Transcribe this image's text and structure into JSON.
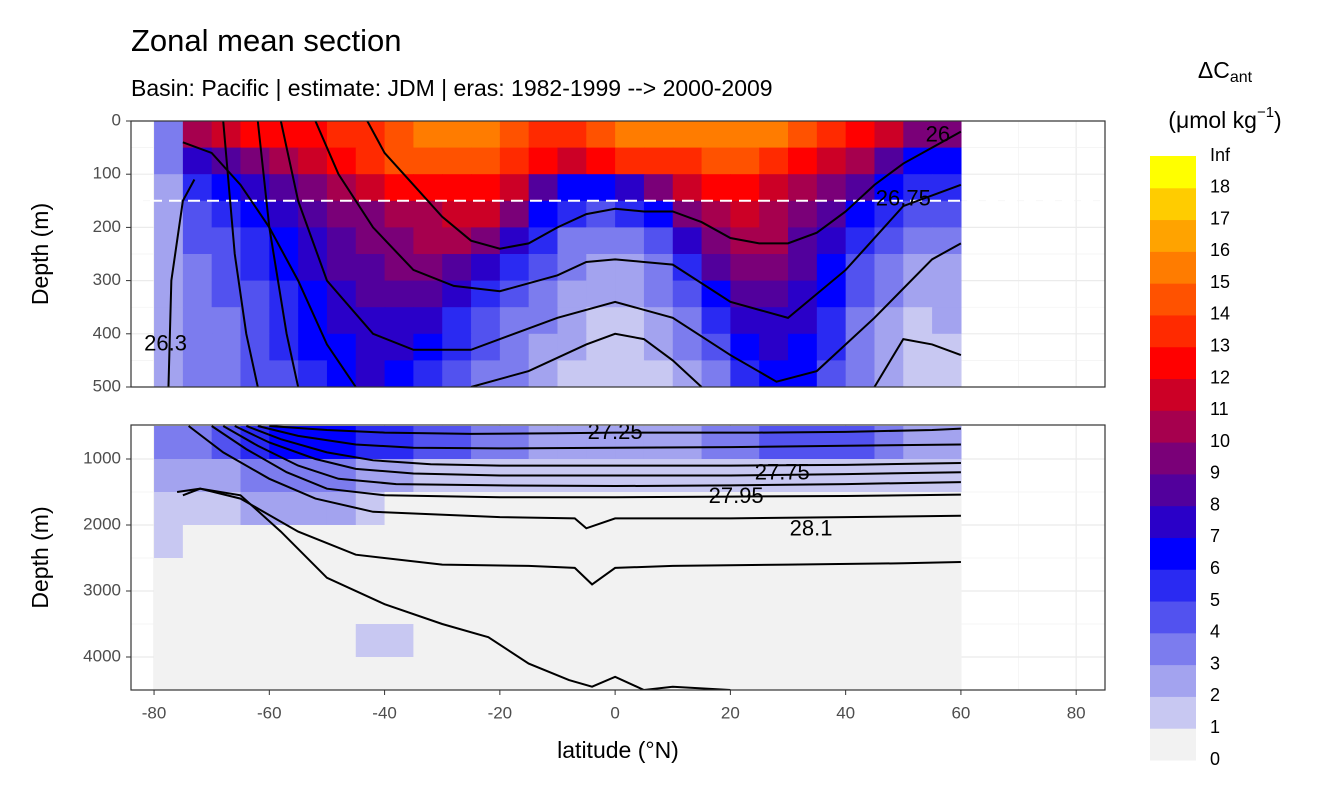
{
  "chart_data": {
    "type": "contour",
    "title": "Zonal mean section",
    "subtitle": "Basin: Pacific | estimate: JDM  | eras: 1982-1999 --> 2000-2009",
    "xlabel": "latitude (°N)",
    "xlim": [
      -84,
      85
    ],
    "xticks": [
      -80,
      -60,
      -40,
      -20,
      0,
      20,
      40,
      60,
      80
    ],
    "x": [
      -77.5,
      -72.5,
      -67.5,
      -62.5,
      -57.5,
      -52.5,
      -47.5,
      -42.5,
      -37.5,
      -32.5,
      -27.5,
      -22.5,
      -17.5,
      -12.5,
      -7.5,
      -2.5,
      2.5,
      7.5,
      12.5,
      17.5,
      22.5,
      27.5,
      32.5,
      37.5,
      42.5,
      47.5,
      52.5,
      57.5
    ],
    "legend": {
      "title": "ΔC",
      "title_sub": "ant",
      "unit": "(μmol kg",
      "unit_sup": "−1",
      "unit_end": ")",
      "levels": [
        0,
        1,
        2,
        3,
        4,
        5,
        6,
        7,
        8,
        9,
        10,
        11,
        12,
        13,
        14,
        15,
        16,
        17,
        18,
        "Inf"
      ],
      "colors": [
        "#f2f2f2",
        "#c8c8f2",
        "#a3a3ef",
        "#7c7cee",
        "#5252ef",
        "#2a2af2",
        "#0000ff",
        "#2a00c8",
        "#52009c",
        "#7a0078",
        "#a6004e",
        "#cc0026",
        "#ff0000",
        "#ff2a00",
        "#ff5200",
        "#ff7c00",
        "#ffa300",
        "#ffcc00",
        "#ffff00"
      ]
    },
    "panels": [
      {
        "ylabel": "Depth (m)",
        "ylim": [
          0,
          500
        ],
        "yticks": [
          0,
          100,
          200,
          300,
          400,
          500
        ],
        "reversed": true,
        "reference_depth": 150,
        "y": [
          25,
          75,
          125,
          175,
          225,
          275,
          325,
          375,
          425,
          475
        ],
        "z": [
          [
            3,
            10,
            11,
            12,
            12,
            12,
            13,
            13,
            14,
            15,
            15,
            15,
            14,
            13,
            13,
            14,
            15,
            15,
            15,
            15,
            15,
            15,
            14,
            13,
            12,
            11,
            9,
            9
          ],
          [
            3,
            7,
            8,
            9,
            10,
            11,
            12,
            13,
            14,
            14,
            14,
            14,
            13,
            12,
            11,
            12,
            13,
            13,
            13,
            14,
            14,
            13,
            12,
            11,
            10,
            8,
            6,
            6
          ],
          [
            2,
            5,
            6,
            7,
            8,
            9,
            10,
            11,
            12,
            12,
            12,
            12,
            11,
            8,
            6,
            6,
            7,
            9,
            11,
            12,
            12,
            11,
            10,
            9,
            8,
            6,
            5,
            5
          ],
          [
            2,
            4,
            5,
            6,
            7,
            8,
            9,
            9,
            10,
            10,
            11,
            11,
            9,
            6,
            5,
            4,
            5,
            6,
            9,
            10,
            11,
            10,
            9,
            8,
            6,
            5,
            4,
            4
          ],
          [
            2,
            4,
            4,
            5,
            6,
            7,
            8,
            9,
            9,
            10,
            10,
            9,
            7,
            5,
            3,
            3,
            3,
            4,
            7,
            9,
            10,
            10,
            8,
            7,
            5,
            4,
            3,
            3
          ],
          [
            2,
            3,
            4,
            5,
            6,
            7,
            8,
            8,
            9,
            9,
            8,
            7,
            5,
            4,
            3,
            2,
            2,
            3,
            5,
            8,
            9,
            9,
            8,
            6,
            4,
            3,
            2,
            2
          ],
          [
            2,
            3,
            4,
            4,
            5,
            6,
            7,
            8,
            8,
            8,
            7,
            5,
            4,
            3,
            2,
            2,
            2,
            3,
            4,
            6,
            8,
            8,
            7,
            6,
            4,
            3,
            2,
            2
          ],
          [
            2,
            3,
            3,
            4,
            5,
            6,
            7,
            7,
            7,
            7,
            5,
            4,
            3,
            3,
            2,
            1,
            1,
            2,
            3,
            5,
            7,
            7,
            7,
            5,
            3,
            2,
            1,
            2
          ],
          [
            2,
            3,
            3,
            4,
            5,
            6,
            6,
            7,
            7,
            6,
            5,
            4,
            3,
            2,
            2,
            1,
            1,
            2,
            3,
            4,
            6,
            7,
            6,
            5,
            3,
            2,
            1,
            1
          ],
          [
            2,
            3,
            3,
            4,
            4,
            5,
            6,
            7,
            6,
            5,
            4,
            3,
            3,
            2,
            1,
            1,
            1,
            1,
            2,
            3,
            5,
            6,
            6,
            4,
            3,
            2,
            1,
            1
          ]
        ],
        "contours": [
          {
            "x": [
              -77.5,
              -77,
              -75,
              -73
            ],
            "y": [
              500,
              300,
              150,
              110
            ],
            "label": "26.3",
            "label_at": [
              -78,
              420
            ]
          },
          {
            "x": [
              -75,
              -70,
              -65,
              -60,
              -55,
              -50,
              -45
            ],
            "y": [
              40,
              60,
              120,
              200,
              300,
              420,
              500
            ]
          },
          {
            "x": [
              -68,
              -66,
              -64,
              -62
            ],
            "y": [
              0,
              250,
              400,
              500
            ]
          },
          {
            "x": [
              -62,
              -60,
              -57,
              -55
            ],
            "y": [
              0,
              200,
              400,
              500
            ]
          },
          {
            "x": [
              -43,
              -40,
              -35,
              -30,
              -25,
              -20,
              -15,
              -10,
              -5,
              0,
              5,
              10,
              15,
              20,
              25,
              30,
              35,
              40,
              45,
              50,
              55,
              60
            ],
            "y": [
              0,
              60,
              120,
              180,
              225,
              240,
              230,
              200,
              175,
              165,
              170,
              170,
              190,
              220,
              230,
              230,
              210,
              170,
              120,
              80,
              50,
              20
            ],
            "label": "26",
            "label_at": [
              56,
              28
            ]
          },
          {
            "x": [
              -52,
              -48,
              -42,
              -35,
              -28,
              -20,
              -10,
              -5,
              0,
              5,
              10,
              20,
              30,
              40,
              50,
              60
            ],
            "y": [
              0,
              100,
              200,
              280,
              310,
              320,
              290,
              265,
              260,
              265,
              270,
              340,
              370,
              280,
              160,
              120
            ],
            "label": "26.75",
            "label_at": [
              50,
              148
            ]
          },
          {
            "x": [
              -58,
              -55,
              -50,
              -42,
              -35,
              -25,
              -15,
              -10,
              0,
              10,
              20,
              28,
              35,
              45,
              55,
              60
            ],
            "y": [
              0,
              150,
              300,
              400,
              430,
              430,
              390,
              370,
              340,
              370,
              440,
              490,
              470,
              370,
              260,
              230
            ]
          },
          {
            "x": [
              -25,
              -15,
              -5,
              0,
              5,
              10,
              15
            ],
            "y": [
              500,
              470,
              420,
              400,
              410,
              450,
              500
            ]
          },
          {
            "x": [
              45,
              50,
              55,
              60
            ],
            "y": [
              500,
              410,
              420,
              440
            ]
          }
        ]
      },
      {
        "ylabel": "Depth (m)",
        "ylim": [
          485,
          4500
        ],
        "yticks": [
          1000,
          2000,
          3000,
          4000
        ],
        "reversed": true,
        "y": [
          750,
          1250,
          1750,
          2250,
          2750,
          3250,
          3750,
          4250
        ],
        "z": [
          [
            3,
            3,
            4,
            5,
            6,
            6,
            6,
            5,
            5,
            4,
            4,
            3,
            3,
            2,
            2,
            2,
            2,
            2,
            2,
            3,
            3,
            4,
            4,
            4,
            4,
            3,
            2,
            2
          ],
          [
            2,
            2,
            2,
            3,
            3,
            3,
            3,
            2,
            2,
            1,
            1,
            1,
            1,
            1,
            1,
            1,
            1,
            1,
            1,
            1,
            1,
            1,
            1,
            1,
            1,
            1,
            1,
            1
          ],
          [
            1,
            1,
            1,
            2,
            2,
            2,
            2,
            1,
            0,
            0,
            0,
            0,
            0,
            0,
            0,
            0,
            0,
            0,
            0,
            0,
            0,
            0,
            0,
            0,
            0,
            0,
            0,
            0
          ],
          [
            1,
            0,
            0,
            0,
            0,
            0,
            0,
            0,
            0,
            0,
            0,
            0,
            0,
            0,
            0,
            0,
            0,
            0,
            0,
            0,
            0,
            0,
            0,
            0,
            0,
            0,
            0,
            0
          ],
          [
            0,
            0,
            0,
            0,
            0,
            0,
            0,
            0,
            0,
            0,
            0,
            0,
            0,
            0,
            0,
            0,
            0,
            0,
            0,
            0,
            0,
            0,
            0,
            0,
            0,
            0,
            0,
            0
          ],
          [
            0,
            0,
            0,
            0,
            0,
            0,
            0,
            0,
            0,
            0,
            0,
            0,
            0,
            0,
            0,
            0,
            0,
            0,
            0,
            0,
            0,
            0,
            0,
            0,
            0,
            0,
            0,
            0
          ],
          [
            0,
            0,
            0,
            0,
            0,
            0,
            0,
            1,
            1,
            0,
            0,
            0,
            0,
            0,
            0,
            0,
            0,
            0,
            0,
            0,
            0,
            0,
            0,
            0,
            0,
            0,
            0,
            0
          ],
          [
            0,
            0,
            0,
            0,
            0,
            0,
            0,
            0,
            0,
            0,
            0,
            0,
            0,
            0,
            0,
            0,
            0,
            0,
            0,
            0,
            0,
            0,
            0,
            0,
            0,
            0,
            0,
            0
          ]
        ],
        "contours": [
          {
            "x": [
              -60,
              -50,
              -40,
              -25,
              -10,
              0,
              10,
              25,
              40,
              55,
              60
            ],
            "y": [
              500,
              560,
              600,
              620,
              610,
              600,
              600,
              600,
              590,
              560,
              540
            ],
            "label": "27.25",
            "label_at": [
              0,
              610
            ]
          },
          {
            "x": [
              -62,
              -55,
              -45,
              -35,
              -20,
              0,
              20,
              40,
              60
            ],
            "y": [
              500,
              650,
              780,
              830,
              840,
              830,
              820,
              800,
              780
            ]
          },
          {
            "x": [
              -64,
              -58,
              -50,
              -42,
              -32,
              -20,
              0,
              20,
              40,
              60
            ],
            "y": [
              500,
              700,
              900,
              1020,
              1080,
              1100,
              1100,
              1100,
              1090,
              1060
            ]
          },
          {
            "x": [
              -66,
              -60,
              -52,
              -45,
              -35,
              -20,
              0,
              20,
              40,
              60
            ],
            "y": [
              500,
              750,
              1000,
              1150,
              1220,
              1250,
              1250,
              1250,
              1230,
              1200
            ],
            "label": "27.75",
            "label_at": [
              29,
              1220
            ]
          },
          {
            "x": [
              -68,
              -62,
              -55,
              -48,
              -38,
              -20,
              0,
              20,
              40,
              60
            ],
            "y": [
              500,
              800,
              1100,
              1300,
              1380,
              1400,
              1410,
              1400,
              1380,
              1350
            ]
          },
          {
            "x": [
              -70,
              -64,
              -57,
              -50,
              -40,
              -20,
              0,
              20,
              40,
              60
            ],
            "y": [
              500,
              850,
              1200,
              1450,
              1550,
              1580,
              1580,
              1570,
              1560,
              1540
            ],
            "label": "27.95",
            "label_at": [
              21,
              1580
            ]
          },
          {
            "x": [
              -74,
              -68,
              -60,
              -52,
              -42,
              -20,
              -7,
              -5,
              0,
              20,
              40,
              60
            ],
            "y": [
              500,
              900,
              1300,
              1600,
              1800,
              1880,
              1900,
              2050,
              1900,
              1900,
              1880,
              1860
            ],
            "label": "28.1",
            "label_at": [
              34,
              2070
            ]
          },
          {
            "x": [
              -76,
              -72,
              -65,
              -55,
              -45,
              -30,
              -15,
              -7,
              -4,
              0,
              10,
              30,
              50,
              60
            ],
            "y": [
              1500,
              1450,
              1600,
              2100,
              2450,
              2600,
              2620,
              2650,
              2900,
              2650,
              2620,
              2600,
              2580,
              2560
            ]
          },
          {
            "x": [
              -75,
              -72,
              -65,
              -58,
              -50,
              -40,
              -30,
              -22,
              -15,
              -8,
              -4,
              0,
              5,
              10,
              20
            ],
            "y": [
              1550,
              1450,
              1550,
              2100,
              2800,
              3200,
              3500,
              3700,
              4100,
              4350,
              4450,
              4300,
              4500,
              4450,
              4500
            ]
          }
        ]
      }
    ]
  }
}
